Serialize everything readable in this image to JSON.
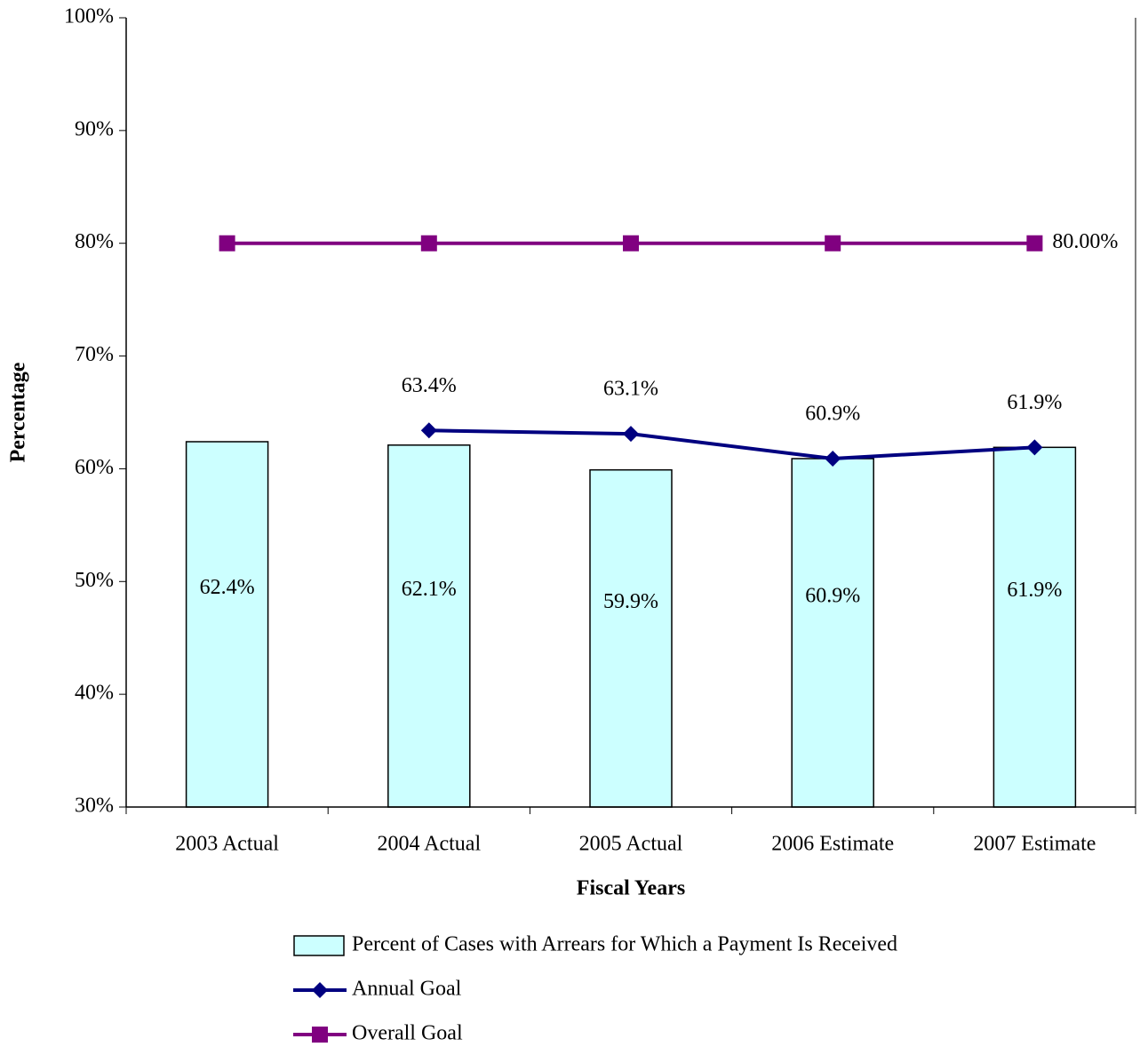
{
  "chart_data": {
    "type": "bar",
    "x_label": "Fiscal Years",
    "y_label": "Percentage",
    "categories": [
      "2003 Actual",
      "2004 Actual",
      "2005 Actual",
      "2006 Estimate",
      "2007 Estimate"
    ],
    "series": [
      {
        "name": "Percent of Cases with Arrears for Which a Payment Is Received",
        "type": "bar",
        "color": "#ccffff",
        "values": [
          62.4,
          62.1,
          59.9,
          60.9,
          61.9
        ],
        "value_labels": [
          "62.4%",
          "62.1%",
          "59.9%",
          "60.9%",
          "61.9%"
        ]
      },
      {
        "name": "Annual Goal",
        "type": "line",
        "marker": "diamond",
        "color": "#000080",
        "values": [
          null,
          63.4,
          63.1,
          60.9,
          61.9
        ],
        "value_labels": [
          null,
          "63.4%",
          "63.1%",
          "60.9%",
          "61.9%"
        ]
      },
      {
        "name": "Overall Goal",
        "type": "line",
        "marker": "square",
        "color": "#800080",
        "values": [
          80,
          80,
          80,
          80,
          80
        ],
        "value_labels": [
          null,
          null,
          null,
          null,
          "80.00%"
        ]
      }
    ],
    "ylim": [
      30,
      100
    ],
    "yticks": [
      {
        "value": 30,
        "label": "30%"
      },
      {
        "value": 40,
        "label": "40%"
      },
      {
        "value": 50,
        "label": "50%"
      },
      {
        "value": 60,
        "label": "60%"
      },
      {
        "value": 70,
        "label": "70%"
      },
      {
        "value": 80,
        "label": "80%"
      },
      {
        "value": 90,
        "label": "90%"
      },
      {
        "value": 100,
        "label": "100%"
      }
    ]
  }
}
